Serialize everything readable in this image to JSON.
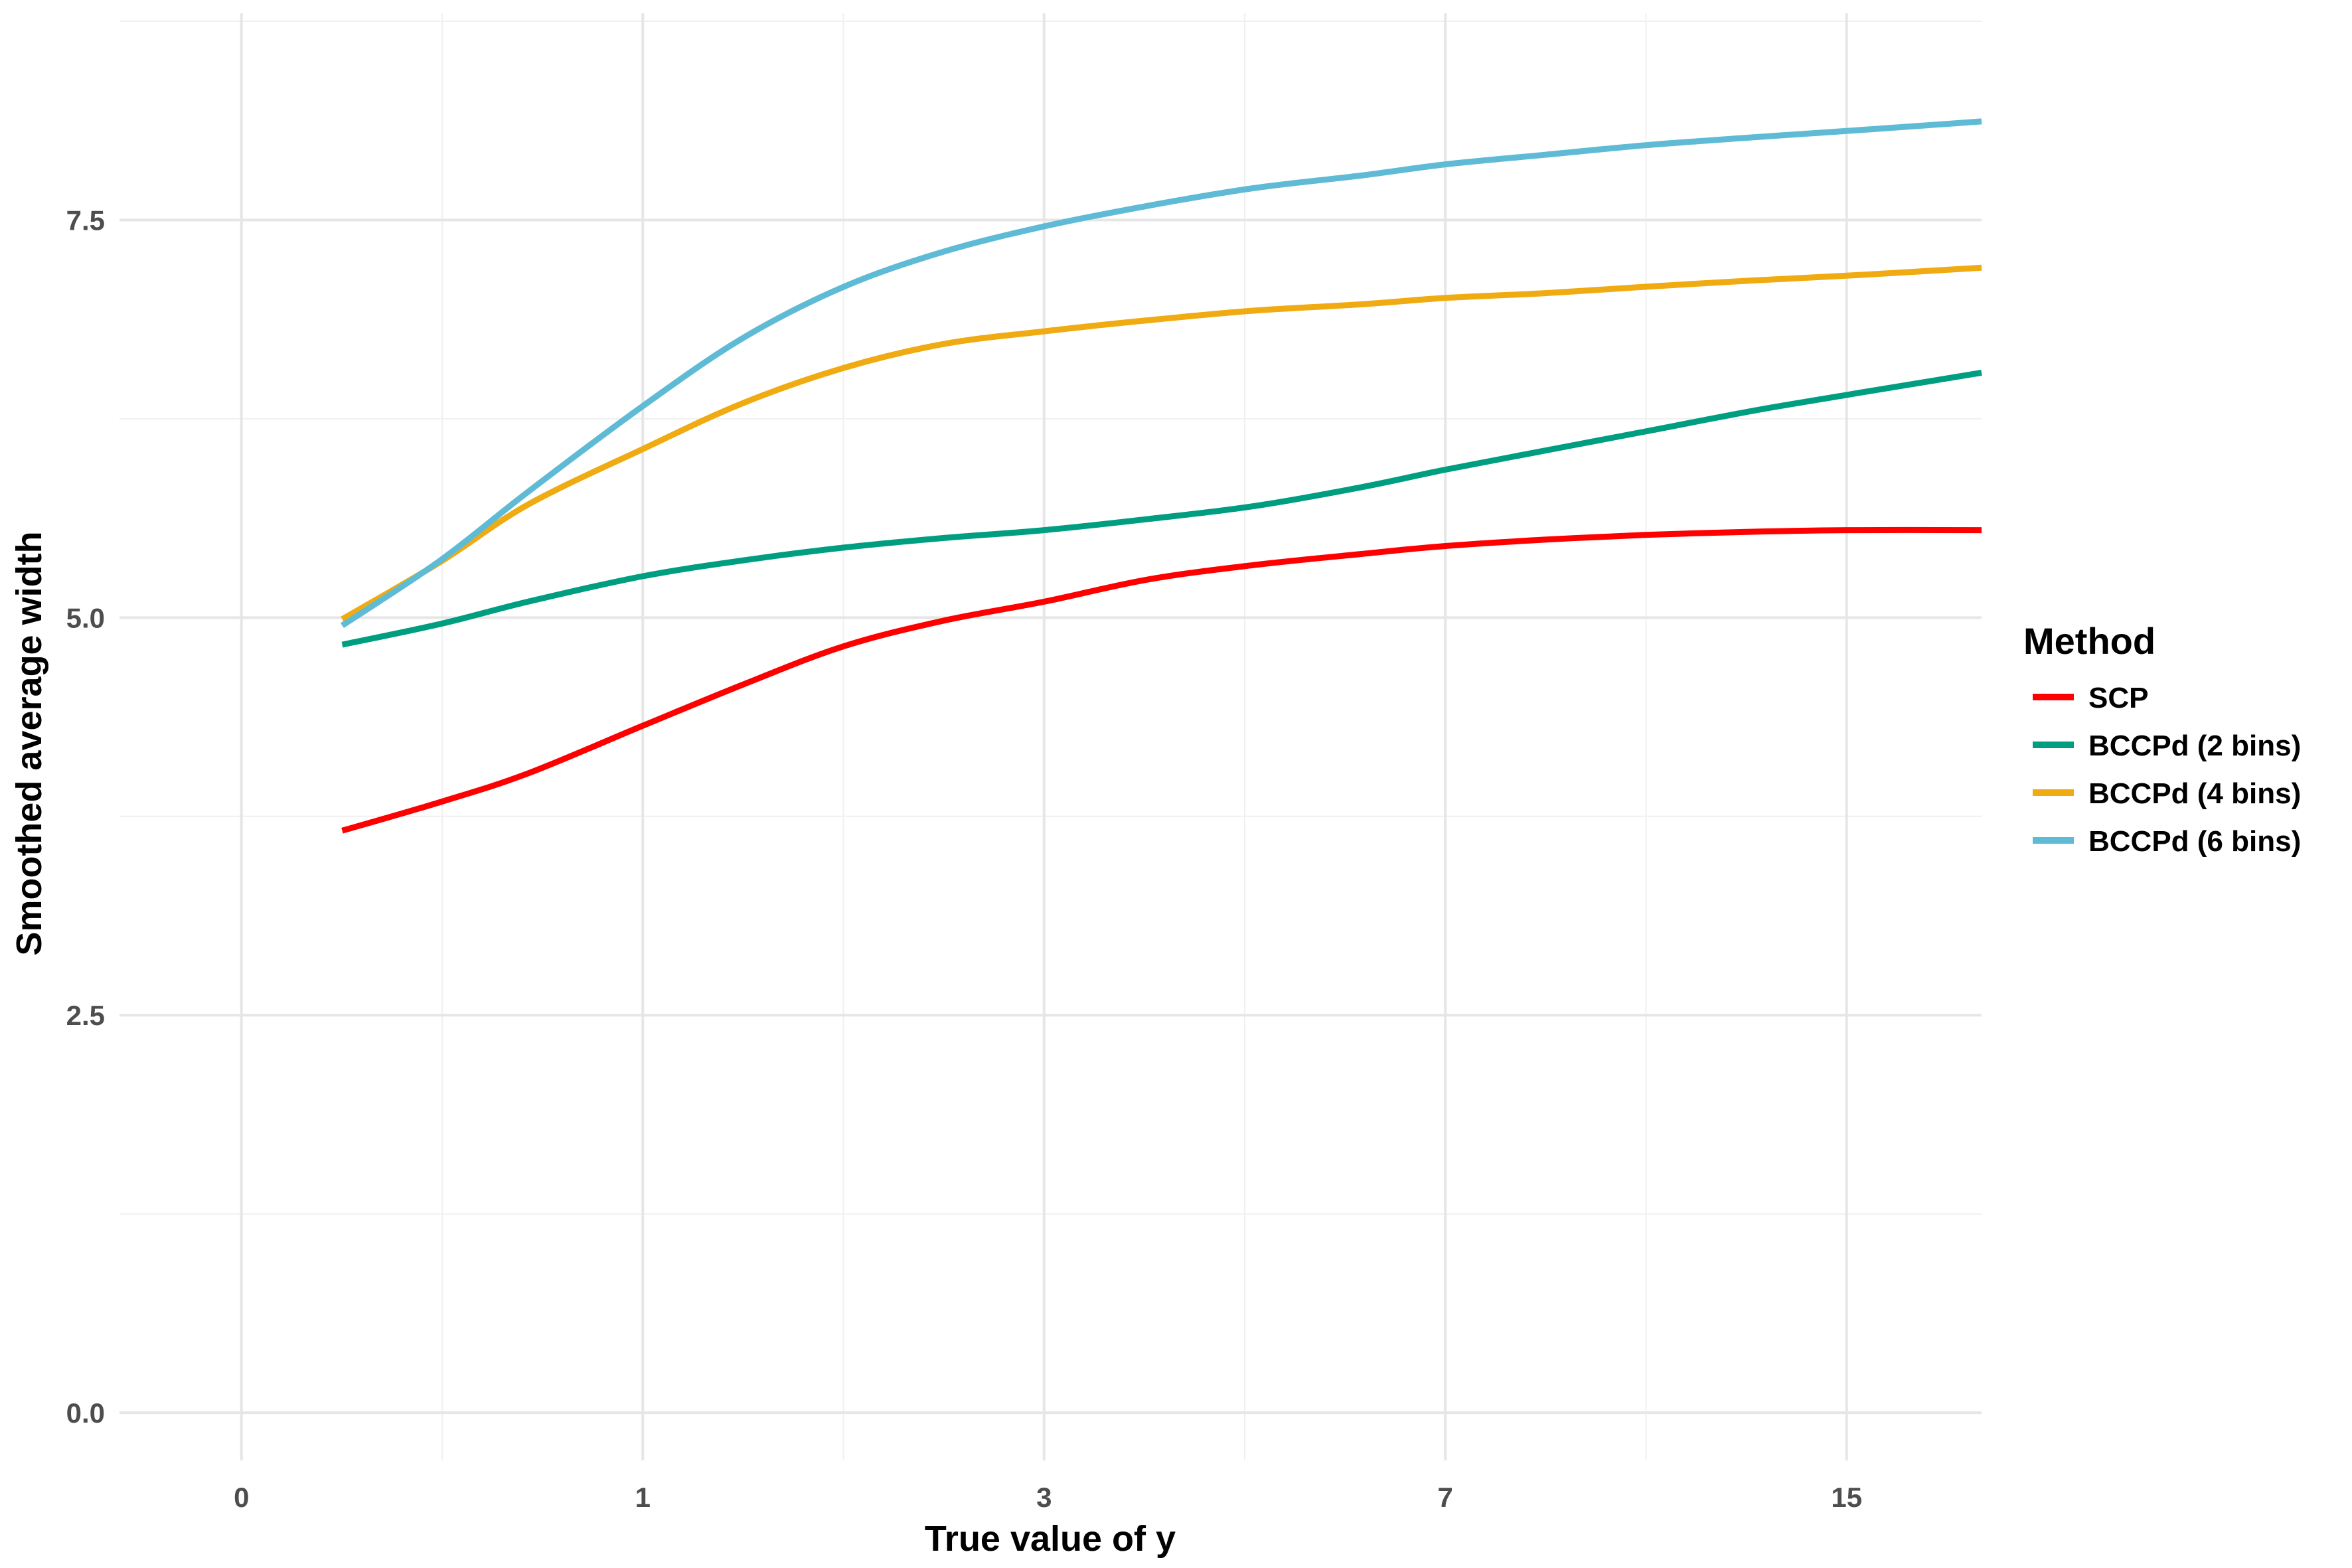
{
  "chart_data": {
    "type": "line",
    "title": "",
    "xlabel": "True value of y",
    "ylabel": "Smoothed average width",
    "x_scale": "log1p",
    "xlim": [
      -0.19,
      19.2
    ],
    "ylim": [
      -0.3,
      8.8
    ],
    "x_ticks": [
      0,
      1,
      3,
      7,
      15
    ],
    "x_tick_labels": [
      "0",
      "1",
      "3",
      "7",
      "15"
    ],
    "y_ticks": [
      0.0,
      2.5,
      5.0,
      7.5
    ],
    "y_tick_labels": [
      "0.0",
      "2.5",
      "5.0",
      "7.5"
    ],
    "grid": true,
    "legend": {
      "title": "Method",
      "position": "right"
    },
    "series": [
      {
        "name": "SCP",
        "color": "#ff0000",
        "x": [
          0.19,
          0.41,
          0.64,
          1.0,
          1.38,
          1.83,
          2.36,
          3.0,
          3.79,
          4.74,
          5.92,
          7.0,
          8.5,
          10.3,
          12.6,
          15.0,
          19.2
        ],
        "y": [
          3.66,
          3.84,
          4.02,
          4.32,
          4.58,
          4.82,
          4.98,
          5.1,
          5.24,
          5.33,
          5.4,
          5.45,
          5.49,
          5.52,
          5.54,
          5.55,
          5.55
        ]
      },
      {
        "name": "BCCPd (2 bins)",
        "color": "#009e81",
        "x": [
          0.19,
          0.41,
          0.64,
          1.0,
          1.38,
          1.83,
          2.36,
          3.0,
          3.79,
          4.74,
          5.92,
          7.0,
          8.5,
          10.3,
          12.6,
          15.0,
          19.2
        ],
        "y": [
          4.83,
          4.96,
          5.1,
          5.26,
          5.36,
          5.44,
          5.5,
          5.55,
          5.62,
          5.7,
          5.82,
          5.93,
          6.05,
          6.17,
          6.3,
          6.4,
          6.54
        ]
      },
      {
        "name": "BCCPd (4 bins)",
        "color": "#efab11",
        "x": [
          0.19,
          0.41,
          0.64,
          1.0,
          1.38,
          1.83,
          2.36,
          3.0,
          3.79,
          4.74,
          5.92,
          7.0,
          8.5,
          10.3,
          12.6,
          15.0,
          19.2
        ],
        "y": [
          4.99,
          5.35,
          5.71,
          6.06,
          6.35,
          6.57,
          6.72,
          6.8,
          6.87,
          6.93,
          6.97,
          7.01,
          7.04,
          7.08,
          7.12,
          7.15,
          7.2
        ]
      },
      {
        "name": "BCCPd (6 bins)",
        "color": "#5fbbd5",
        "x": [
          0.19,
          0.41,
          0.64,
          1.0,
          1.38,
          1.83,
          2.36,
          3.0,
          3.79,
          4.74,
          5.92,
          7.0,
          8.5,
          10.3,
          12.6,
          15.0,
          19.2
        ],
        "y": [
          4.95,
          5.36,
          5.79,
          6.33,
          6.76,
          7.08,
          7.3,
          7.46,
          7.59,
          7.7,
          7.78,
          7.85,
          7.91,
          7.97,
          8.02,
          8.06,
          8.12
        ]
      }
    ]
  }
}
